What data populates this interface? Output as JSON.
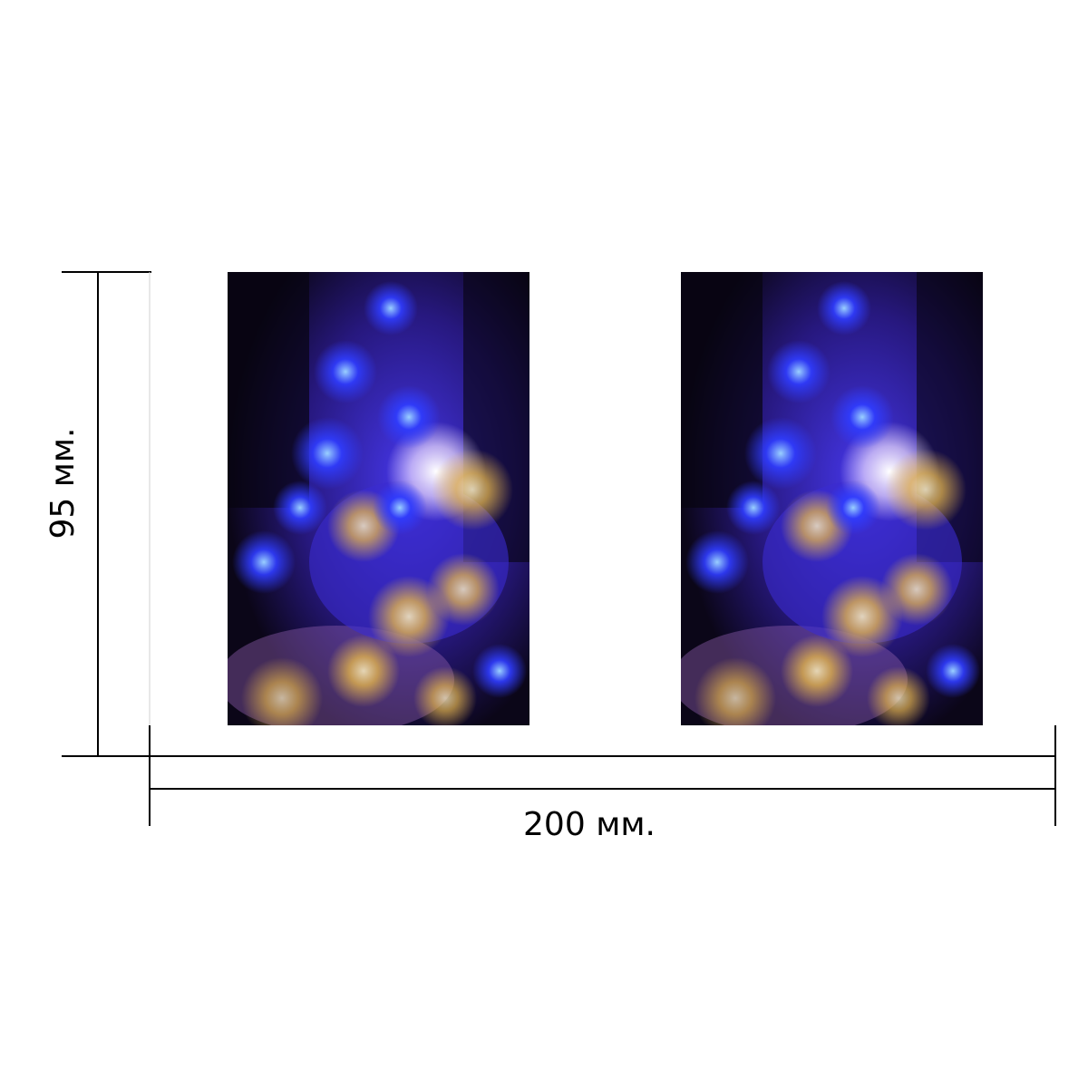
{
  "dimensions": {
    "width_label": "200 мм.",
    "height_label": "95 мм."
  },
  "photos": [
    {
      "name": "left-photo",
      "description_icon": "light-bokeh-image"
    },
    {
      "name": "right-photo",
      "description_icon": "light-bokeh-image"
    }
  ],
  "colors": {
    "background": "#ffffff",
    "line": "#000000",
    "photo_dark": "#0b0618",
    "photo_blue": "#3a2cff",
    "photo_purple": "#6a3cc8",
    "photo_gold": "#e8b84a"
  }
}
